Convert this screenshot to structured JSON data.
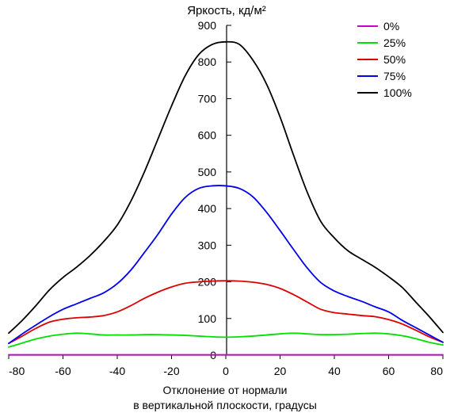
{
  "chart_data": {
    "type": "line",
    "title": "Яркость, кд/м²",
    "xlabel_line1": "Отклонение от нормали",
    "xlabel_line2": "в вертикальной плоскости, градусы",
    "ylabel": "",
    "xlim": [
      -80,
      80
    ],
    "ylim": [
      0,
      900
    ],
    "x_ticks": [
      -80,
      -60,
      -40,
      -20,
      0,
      20,
      40,
      60,
      80
    ],
    "y_ticks": [
      0,
      100,
      200,
      300,
      400,
      500,
      600,
      700,
      800,
      900
    ],
    "grid": false,
    "legend_position": "top-right",
    "x": [
      -80,
      -75,
      -70,
      -65,
      -60,
      -55,
      -50,
      -45,
      -40,
      -35,
      -30,
      -25,
      -20,
      -15,
      -10,
      -5,
      0,
      5,
      10,
      15,
      20,
      25,
      30,
      35,
      40,
      45,
      50,
      55,
      60,
      65,
      70,
      75,
      80
    ],
    "series": [
      {
        "name": "0%",
        "color": "#cc00cc",
        "values": [
          1,
          1,
          1,
          1,
          1,
          1,
          1,
          1,
          1,
          1,
          1,
          1,
          1,
          1,
          1,
          1,
          1,
          1,
          1,
          1,
          1,
          1,
          1,
          1,
          1,
          1,
          1,
          1,
          1,
          1,
          1,
          1,
          1
        ]
      },
      {
        "name": "25%",
        "color": "#00e000",
        "values": [
          22,
          33,
          44,
          52,
          57,
          60,
          58,
          55,
          55,
          55,
          56,
          56,
          55,
          54,
          52,
          50,
          49,
          50,
          52,
          55,
          58,
          60,
          58,
          56,
          56,
          57,
          59,
          60,
          58,
          53,
          45,
          35,
          28
        ]
      },
      {
        "name": "50%",
        "color": "#dd0000",
        "values": [
          32,
          52,
          73,
          90,
          98,
          102,
          104,
          108,
          118,
          135,
          155,
          172,
          186,
          196,
          200,
          202,
          203,
          202,
          199,
          193,
          182,
          165,
          145,
          125,
          116,
          112,
          108,
          105,
          97,
          85,
          68,
          50,
          35
        ]
      },
      {
        "name": "75%",
        "color": "#0000ee",
        "values": [
          32,
          58,
          82,
          105,
          125,
          140,
          155,
          170,
          195,
          232,
          280,
          330,
          385,
          430,
          455,
          462,
          462,
          455,
          432,
          390,
          340,
          288,
          238,
          198,
          175,
          160,
          147,
          132,
          118,
          95,
          75,
          55,
          35
        ]
      },
      {
        "name": "100%",
        "color": "#000000",
        "values": [
          60,
          95,
          135,
          178,
          212,
          240,
          272,
          310,
          355,
          420,
          500,
          590,
          680,
          762,
          820,
          848,
          855,
          848,
          805,
          740,
          650,
          545,
          445,
          365,
          320,
          285,
          262,
          240,
          214,
          185,
          145,
          105,
          62
        ]
      }
    ]
  }
}
